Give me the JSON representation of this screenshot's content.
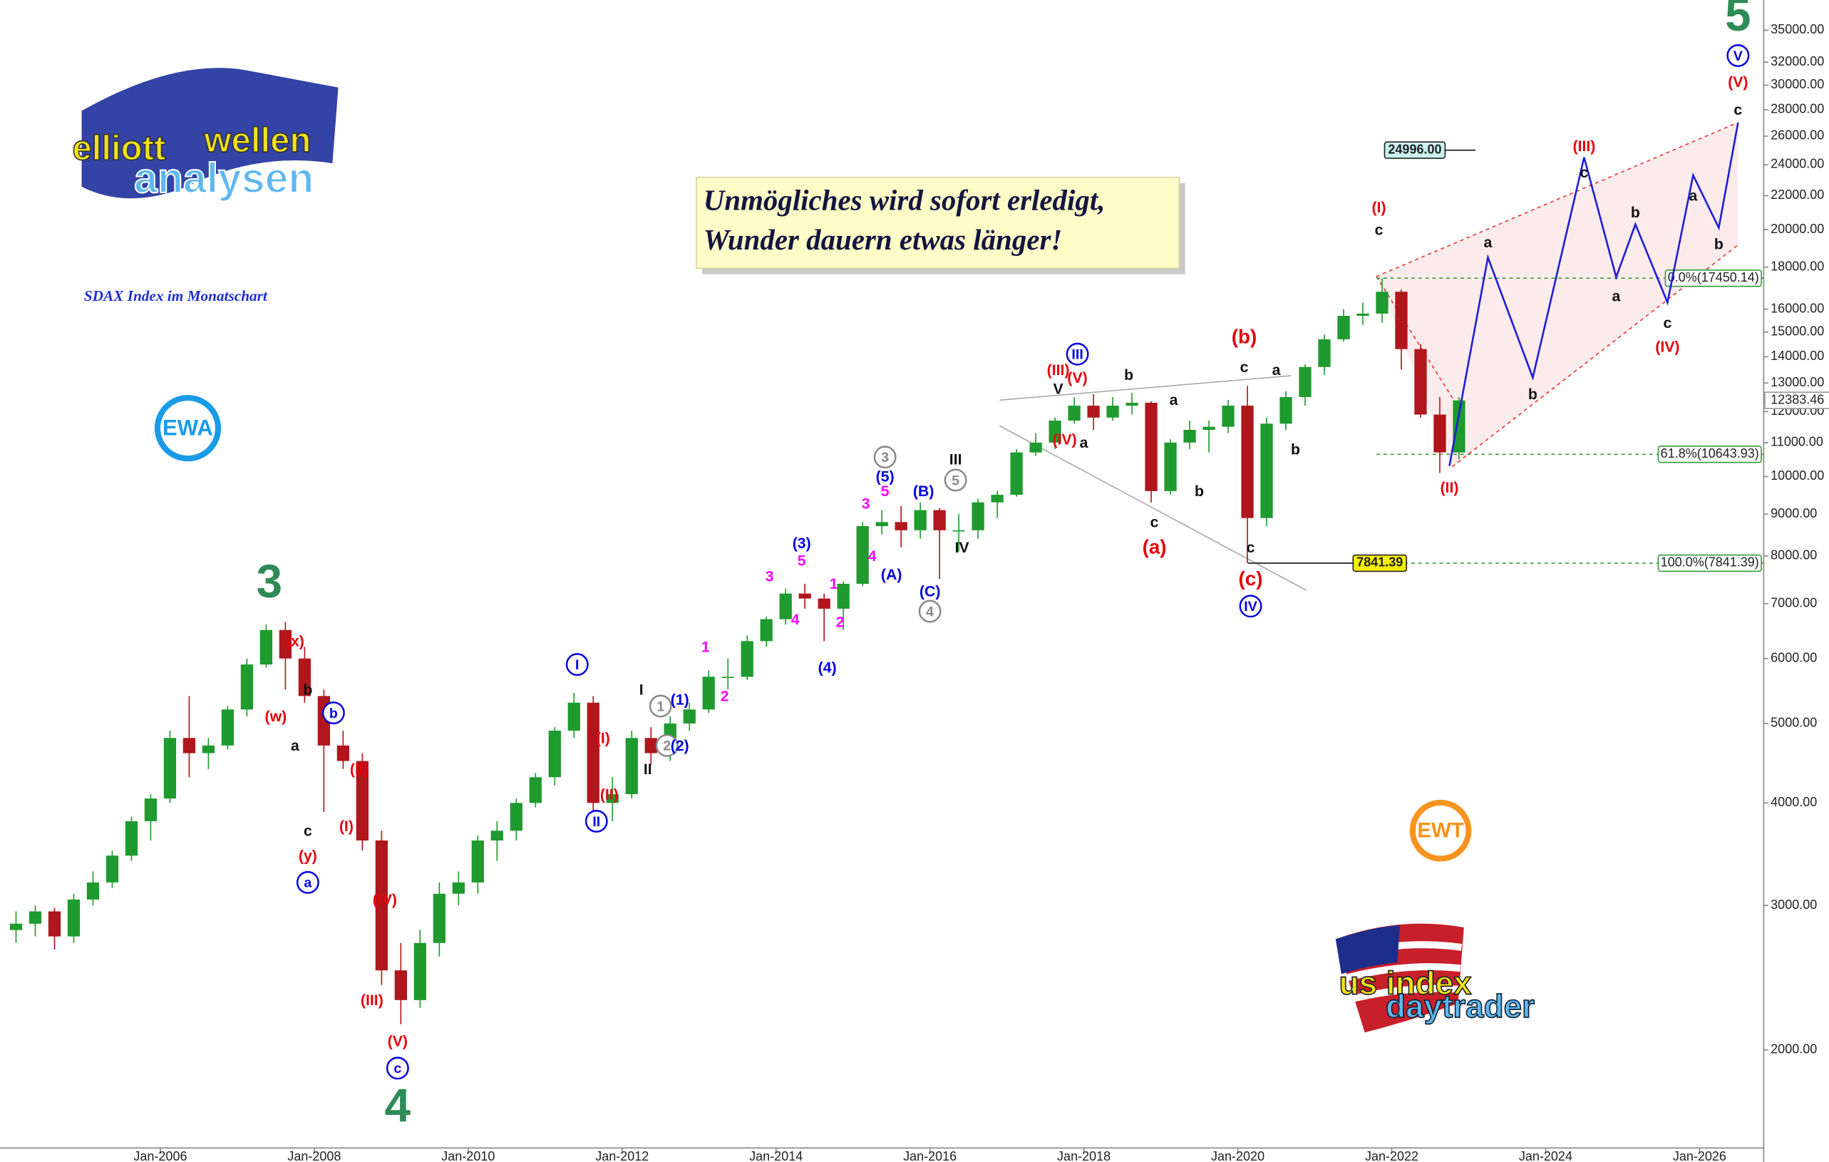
{
  "chart_data": {
    "type": "candlestick",
    "title_lines": [
      "Unmögliches wird sofort erledigt,",
      "Wunder dauern etwas länger!"
    ],
    "subtitle": "SDAX Index im Monatschart",
    "log_scale": true,
    "xlim": [
      "Dec-2003",
      "Nov-2026"
    ],
    "ylim": [
      1460,
      38100
    ],
    "up_color": "#1f9a2e",
    "down_color": "#b0161c",
    "x": [
      "Jan-2004",
      "Apr-2004",
      "Jul-2004",
      "Oct-2004",
      "Jan-2005",
      "Apr-2005",
      "Jul-2005",
      "Oct-2005",
      "Jan-2006",
      "Apr-2006",
      "Jul-2006",
      "Oct-2006",
      "Jan-2007",
      "Apr-2007",
      "Jul-2007",
      "Oct-2007",
      "Jan-2008",
      "Apr-2008",
      "Jul-2008",
      "Oct-2008",
      "Jan-2009",
      "Apr-2009",
      "Jul-2009",
      "Oct-2009",
      "Jan-2010",
      "Apr-2010",
      "Jul-2010",
      "Oct-2010",
      "Jan-2011",
      "Apr-2011",
      "Jul-2011",
      "Oct-2011",
      "Jan-2012",
      "Apr-2012",
      "Jul-2012",
      "Oct-2012",
      "Jan-2013",
      "Apr-2013",
      "Jul-2013",
      "Oct-2013",
      "Jan-2014",
      "Apr-2014",
      "Jul-2014",
      "Oct-2014",
      "Jan-2015",
      "Apr-2015",
      "Jul-2015",
      "Oct-2015",
      "Jan-2016",
      "Apr-2016",
      "Jul-2016",
      "Oct-2016",
      "Jan-2017",
      "Apr-2017",
      "Jul-2017",
      "Oct-2017",
      "Jan-2018",
      "Apr-2018",
      "Jul-2018",
      "Oct-2018",
      "Jan-2019",
      "Apr-2019",
      "Jul-2019",
      "Oct-2019",
      "Jan-2020",
      "Apr-2020",
      "Jul-2020",
      "Oct-2020",
      "Jan-2021",
      "Apr-2021",
      "Jul-2021",
      "Oct-2021",
      "Jan-2022",
      "Apr-2022",
      "Jul-2022",
      "Oct-2022"
    ],
    "open": [
      2800,
      2850,
      2950,
      2750,
      3050,
      3200,
      3450,
      3800,
      4050,
      4800,
      4600,
      4700,
      5200,
      5900,
      6500,
      6000,
      5400,
      4700,
      4500,
      3600,
      2500,
      2300,
      2700,
      3100,
      3200,
      3600,
      3700,
      4000,
      4300,
      4900,
      5300,
      4000,
      4100,
      4800,
      4600,
      5000,
      5200,
      5700,
      5700,
      6300,
      6700,
      7200,
      7100,
      6900,
      7400,
      8700,
      8800,
      8600,
      9100,
      8600,
      8600,
      9300,
      9500,
      10700,
      11000,
      11700,
      12200,
      11800,
      12200,
      12300,
      9600,
      11000,
      11400,
      11500,
      12200,
      8900,
      11600,
      12500,
      13600,
      14700,
      15700,
      15800,
      16800,
      14300,
      11900,
      10700
    ],
    "high": [
      2950,
      3000,
      2980,
      3100,
      3300,
      3500,
      3850,
      4100,
      4900,
      5400,
      4800,
      5250,
      6000,
      6600,
      6650,
      6200,
      5500,
      4900,
      4600,
      3700,
      2700,
      2800,
      3200,
      3300,
      3650,
      3800,
      4050,
      4350,
      4950,
      5450,
      5400,
      4300,
      4900,
      4950,
      5100,
      5300,
      5800,
      6000,
      6400,
      6750,
      7300,
      7400,
      7200,
      7450,
      8800,
      9100,
      9200,
      9300,
      9150,
      9000,
      9400,
      9600,
      10800,
      11300,
      11800,
      12500,
      12600,
      12500,
      12650,
      12350,
      11100,
      11700,
      11700,
      12400,
      12900,
      11800,
      12700,
      13700,
      14900,
      16000,
      16300,
      17450.14,
      16900,
      14500,
      12500,
      12500
    ],
    "low": [
      2700,
      2750,
      2650,
      2700,
      3000,
      3150,
      3400,
      3600,
      4000,
      4300,
      4400,
      4650,
      5100,
      5850,
      5500,
      5300,
      3900,
      4400,
      3500,
      2400,
      2150,
      2250,
      2600,
      3000,
      3100,
      3400,
      3600,
      3950,
      4200,
      4800,
      3850,
      3800,
      4050,
      4450,
      4500,
      4900,
      5150,
      5500,
      5650,
      6200,
      6600,
      6900,
      6300,
      6500,
      7350,
      8500,
      8200,
      8400,
      7500,
      8100,
      8400,
      8900,
      9450,
      10600,
      10800,
      11600,
      11400,
      11700,
      11900,
      9300,
      9500,
      10800,
      10700,
      11300,
      7841.39,
      8700,
      11400,
      12200,
      13300,
      14600,
      15300,
      15400,
      13500,
      11800,
      10100,
      10500
    ],
    "close": [
      2850,
      2950,
      2750,
      3050,
      3200,
      3450,
      3800,
      4050,
      4800,
      4600,
      4700,
      5200,
      5900,
      6500,
      6000,
      5400,
      4700,
      4500,
      3600,
      2500,
      2300,
      2700,
      3100,
      3200,
      3600,
      3700,
      4000,
      4300,
      4900,
      5300,
      4000,
      4100,
      4800,
      4600,
      5000,
      5200,
      5700,
      5700,
      6300,
      6700,
      7200,
      7100,
      6900,
      7400,
      8700,
      8800,
      8600,
      9100,
      8600,
      8600,
      9300,
      9500,
      10700,
      11000,
      11700,
      12200,
      11800,
      12200,
      12300,
      9600,
      11000,
      11400,
      11500,
      12200,
      8900,
      11600,
      12500,
      13600,
      14700,
      15700,
      15800,
      16800,
      14300,
      11900,
      10700,
      12383.46
    ],
    "projection": {
      "color": "#1f1fd6",
      "x": [
        "Oct-2022",
        "Apr-2023",
        "Nov-2023",
        "Jul-2024",
        "Dec-2024",
        "Mar-2025",
        "Aug-2025",
        "Dec-2025",
        "Apr-2026",
        "Jul-2026"
      ],
      "values": [
        10300,
        18500,
        13200,
        24500,
        17500,
        20300,
        16300,
        23300,
        20100,
        27000
      ]
    },
    "fib_levels": [
      {
        "label": "0.0%(17450.14)",
        "value": 17450.14
      },
      {
        "label": "61.8%(10643.93)",
        "value": 10643.93
      },
      {
        "label": "100.0%(7841.39)",
        "value": 7841.39
      }
    ],
    "price_boxes": [
      {
        "value": 24996,
        "label": "24996.00",
        "color": "#c9f2ee"
      },
      {
        "value": 7841.39,
        "color": "#f6f000"
      }
    ],
    "xticks": [
      "Jan-2006",
      "Jan-2008",
      "Jan-2010",
      "Jan-2012",
      "Jan-2014",
      "Jan-2016",
      "Jan-2018",
      "Jan-2020",
      "Jan-2022",
      "Jan-2024",
      "Jan-2026"
    ],
    "yticks": [
      {
        "value": 2000,
        "label": "2000.00"
      },
      {
        "value": 3000,
        "label": "3000.00"
      },
      {
        "value": 4000,
        "label": "4000.00"
      },
      {
        "value": 5000,
        "label": "5000.00"
      },
      {
        "value": 6000,
        "label": "6000.00"
      },
      {
        "value": 7000,
        "label": "7000.00"
      },
      {
        "value": 8000,
        "label": "8000.00"
      },
      {
        "value": 9000,
        "label": "9000.00"
      },
      {
        "value": 10000,
        "label": "10000.00"
      },
      {
        "value": 11000,
        "label": "11000.00"
      },
      {
        "value": 12000,
        "label": "12000.00"
      },
      {
        "value": 13000,
        "label": "13000.00"
      },
      {
        "value": 14000,
        "label": "14000.00"
      },
      {
        "value": 15000,
        "label": "15000.00"
      },
      {
        "value": 16000,
        "label": "16000.00"
      },
      {
        "value": 18000,
        "label": "18000.00"
      },
      {
        "value": 20000,
        "label": "20000.00"
      },
      {
        "value": 22000,
        "label": "22000.00"
      },
      {
        "value": 24000,
        "label": "24000.00"
      },
      {
        "value": 26000,
        "label": "26000.00"
      },
      {
        "value": 28000,
        "label": "28000.00"
      },
      {
        "value": 30000,
        "label": "30000.00"
      },
      {
        "value": 32000,
        "label": "32000.00"
      },
      {
        "value": 35000,
        "label": "35000.00"
      }
    ],
    "annotations": [
      {
        "text": "3",
        "x": "Jun-2007",
        "y": 7400,
        "color": "#2e8b57"
      },
      {
        "text": "4",
        "x": "Feb-2009",
        "y": 1700,
        "color": "#2e8b57"
      },
      {
        "text": "5",
        "x": "Jul-2026",
        "y": 36300,
        "color": "#2e8b57"
      },
      {
        "text": "(x)",
        "x": "Oct-2007",
        "y": 6300,
        "color": "#e8000b"
      },
      {
        "text": "(w)",
        "x": "Jul-2007",
        "y": 5100,
        "color": "#e8000b"
      },
      {
        "text": "b",
        "x": "Dec-2007",
        "y": 5500,
        "color": "#111111"
      },
      {
        "text": "b",
        "x": "Apr-2008",
        "y": 5150,
        "color": "#0000e0",
        "circle": true
      },
      {
        "text": "a",
        "x": "Oct-2007",
        "y": 4700,
        "color": "#111111"
      },
      {
        "text": "(II)",
        "x": "Aug-2008",
        "y": 4400,
        "color": "#e8000b"
      },
      {
        "text": "(I)",
        "x": "Jun-2008",
        "y": 3750,
        "color": "#e8000b"
      },
      {
        "text": "c",
        "x": "Dec-2007",
        "y": 3700,
        "color": "#111111"
      },
      {
        "text": "(y)",
        "x": "Dec-2007",
        "y": 3450,
        "color": "#e8000b"
      },
      {
        "text": "a",
        "x": "Dec-2007",
        "y": 3200,
        "color": "#0000e0",
        "circle": true
      },
      {
        "text": "(IV)",
        "x": "Dec-2008",
        "y": 3050,
        "color": "#e8000b"
      },
      {
        "text": "(III)",
        "x": "Oct-2008",
        "y": 2300,
        "color": "#e8000b"
      },
      {
        "text": "(V)",
        "x": "Feb-2009",
        "y": 2050,
        "color": "#e8000b"
      },
      {
        "text": "c",
        "x": "Feb-2009",
        "y": 1900,
        "color": "#0000e0",
        "circle": true
      },
      {
        "text": "I",
        "x": "Jun-2011",
        "y": 5900,
        "color": "#0000e0",
        "circle": true
      },
      {
        "text": "II",
        "x": "Sep-2011",
        "y": 3800,
        "color": "#0000e0",
        "circle": true
      },
      {
        "text": "(I)",
        "x": "Oct-2011",
        "y": 4800,
        "color": "#e8000b"
      },
      {
        "text": "(II)",
        "x": "Nov-2011",
        "y": 4100,
        "color": "#e8000b"
      },
      {
        "text": "I",
        "x": "Apr-2012",
        "y": 5500,
        "color": "#111111"
      },
      {
        "text": "II",
        "x": "May-2012",
        "y": 4400,
        "color": "#111111"
      },
      {
        "text": "1",
        "x": "Jul-2012",
        "y": 5250,
        "color": "#888888",
        "circle": true
      },
      {
        "text": "2",
        "x": "Aug-2012",
        "y": 4700,
        "color": "#888888",
        "circle": true
      },
      {
        "text": "(1)",
        "x": "Oct-2012",
        "y": 5350,
        "color": "#0000e0"
      },
      {
        "text": "(2)",
        "x": "Oct-2012",
        "y": 4700,
        "color": "#0000e0"
      },
      {
        "text": "1",
        "x": "Feb-2013",
        "y": 6200,
        "color": "#ff00ff"
      },
      {
        "text": "2",
        "x": "May-2013",
        "y": 5400,
        "color": "#ff00ff"
      },
      {
        "text": "3",
        "x": "Dec-2013",
        "y": 7560,
        "color": "#ff00ff"
      },
      {
        "text": "(3)",
        "x": "May-2014",
        "y": 8300,
        "color": "#0000e0"
      },
      {
        "text": "5",
        "x": "May-2014",
        "y": 7900,
        "color": "#ff00ff"
      },
      {
        "text": "4",
        "x": "Apr-2014",
        "y": 6700,
        "color": "#ff00ff"
      },
      {
        "text": "1",
        "x": "Oct-2014",
        "y": 7400,
        "color": "#ff00ff"
      },
      {
        "text": "2",
        "x": "Nov-2014",
        "y": 6650,
        "color": "#ff00ff"
      },
      {
        "text": "(4)",
        "x": "Sep-2014",
        "y": 5850,
        "color": "#0000e0"
      },
      {
        "text": "3",
        "x": "Mar-2015",
        "y": 9270,
        "color": "#ff00ff"
      },
      {
        "text": "4",
        "x": "Apr-2015",
        "y": 8000,
        "color": "#ff00ff"
      },
      {
        "text": "5",
        "x": "Jun-2015",
        "y": 9600,
        "color": "#ff00ff"
      },
      {
        "text": "(5)",
        "x": "Jun-2015",
        "y": 10000,
        "color": "#0000e0"
      },
      {
        "text": "3",
        "x": "Jun-2015",
        "y": 10560,
        "color": "#888888",
        "circle": true
      },
      {
        "text": "(A)",
        "x": "Jul-2015",
        "y": 7600,
        "color": "#0000e0"
      },
      {
        "text": "(B)",
        "x": "Dec-2015",
        "y": 9600,
        "color": "#0000e0"
      },
      {
        "text": "(C)",
        "x": "Jan-2016",
        "y": 7250,
        "color": "#0000e0"
      },
      {
        "text": "4",
        "x": "Jan-2016",
        "y": 6850,
        "color": "#888888",
        "circle": true
      },
      {
        "text": "5",
        "x": "May-2016",
        "y": 9900,
        "color": "#888888",
        "circle": true
      },
      {
        "text": "III",
        "x": "May-2016",
        "y": 10500,
        "color": "#111111"
      },
      {
        "text": "IV",
        "x": "Jun-2016",
        "y": 8200,
        "color": "#111111"
      },
      {
        "text": "(IV)",
        "x": "Oct-2017",
        "y": 11100,
        "color": "#e8000b"
      },
      {
        "text": "a",
        "x": "Jan-2018",
        "y": 11000,
        "color": "#111111"
      },
      {
        "text": "V",
        "x": "Sep-2017",
        "y": 12800,
        "color": "#111111"
      },
      {
        "text": "(III)",
        "x": "Sep-2017",
        "y": 13500,
        "color": "#e8000b"
      },
      {
        "text": "(V)",
        "x": "Dec-2017",
        "y": 13200,
        "color": "#e8000b"
      },
      {
        "text": "III",
        "x": "Dec-2017",
        "y": 14100,
        "color": "#0000e0",
        "circle": true
      },
      {
        "text": "b",
        "x": "Aug-2018",
        "y": 13300,
        "color": "#111111"
      },
      {
        "text": "a",
        "x": "Mar-2019",
        "y": 12400,
        "color": "#111111"
      },
      {
        "text": "b",
        "x": "Jul-2019",
        "y": 9600,
        "color": "#111111"
      },
      {
        "text": "c",
        "x": "Dec-2018",
        "y": 8800,
        "color": "#111111"
      },
      {
        "text": "(a)",
        "x": "Dec-2018",
        "y": 8200,
        "color": "#e8000b"
      },
      {
        "text": "(b)",
        "x": "Feb-2020",
        "y": 14800,
        "color": "#e8000b"
      },
      {
        "text": "c",
        "x": "Feb-2020",
        "y": 13600,
        "color": "#111111"
      },
      {
        "text": "a",
        "x": "Jul-2020",
        "y": 13500,
        "color": "#111111"
      },
      {
        "text": "b",
        "x": "Oct-2020",
        "y": 10800,
        "color": "#111111"
      },
      {
        "text": "c",
        "x": "Mar-2020",
        "y": 8200,
        "color": "#111111"
      },
      {
        "text": "(c)",
        "x": "Mar-2020",
        "y": 7500,
        "color": "#e8000b"
      },
      {
        "text": "IV",
        "x": "Mar-2020",
        "y": 6950,
        "color": "#0000e0",
        "circle": true
      },
      {
        "text": "(I)",
        "x": "Nov-2021",
        "y": 21300,
        "color": "#e8000b"
      },
      {
        "text": "c",
        "x": "Nov-2021",
        "y": 20000,
        "color": "#111111"
      },
      {
        "text": "(II)",
        "x": "Oct-2022",
        "y": 9700,
        "color": "#e8000b"
      },
      {
        "text": "a",
        "x": "Apr-2023",
        "y": 19300,
        "color": "#111111"
      },
      {
        "text": "b",
        "x": "Nov-2023",
        "y": 12600,
        "color": "#111111"
      },
      {
        "text": "(III)",
        "x": "Jul-2024",
        "y": 25300,
        "color": "#e8000b"
      },
      {
        "text": "c",
        "x": "Jul-2024",
        "y": 23500,
        "color": "#111111"
      },
      {
        "text": "a",
        "x": "Dec-2024",
        "y": 16600,
        "color": "#111111"
      },
      {
        "text": "b",
        "x": "Mar-2025",
        "y": 21000,
        "color": "#111111"
      },
      {
        "text": "c",
        "x": "Aug-2025",
        "y": 15400,
        "color": "#111111"
      },
      {
        "text": "(IV)",
        "x": "Aug-2025",
        "y": 14400,
        "color": "#e8000b"
      },
      {
        "text": "a",
        "x": "Dec-2025",
        "y": 22000,
        "color": "#111111"
      },
      {
        "text": "b",
        "x": "Apr-2026",
        "y": 19200,
        "color": "#111111"
      },
      {
        "text": "c",
        "x": "Jul-2026",
        "y": 28000,
        "color": "#111111"
      },
      {
        "text": "(V)",
        "x": "Jul-2026",
        "y": 30300,
        "color": "#e8000b"
      },
      {
        "text": "V",
        "x": "Jul-2026",
        "y": 32600,
        "color": "#0000e0",
        "circle": true
      }
    ]
  },
  "branding": {
    "logo_1": [
      "elliott",
      "wellen",
      "analysen"
    ],
    "badge_1": "EWA",
    "badge_2": "EWT",
    "logo_2": [
      "us index",
      "daytrader"
    ]
  }
}
